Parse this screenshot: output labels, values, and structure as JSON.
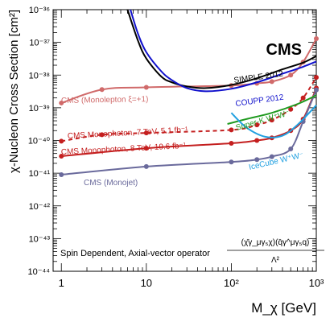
{
  "chart_data": {
    "type": "line",
    "title": "",
    "xlabel": "M_χ [GeV]",
    "ylabel": "χ-Nucleon Cross Section [cm²]",
    "xscale": "log",
    "yscale": "log",
    "xlim": [
      0.8,
      1000
    ],
    "ylim": [
      1e-44,
      1e-36
    ],
    "x_ticks": [
      "1",
      "10",
      "10²",
      "10³"
    ],
    "y_ticks": [
      "10⁻⁴⁴",
      "10⁻⁴³",
      "10⁻⁴²",
      "10⁻⁴¹",
      "10⁻⁴⁰",
      "10⁻³⁹",
      "10⁻³⁸",
      "10⁻³⁷",
      "10⁻³⁶"
    ],
    "grid": false,
    "experiment": "CMS",
    "operator_text": "Spin Dependent, Axial-vector operator",
    "operator_formula": {
      "numerator": "(χ̄γ_μγ₅χ)(q̄γ^μγ₅q)",
      "denominator": "Λ²"
    },
    "series": [
      {
        "name": "CMS (Monolepton ξ=+1)",
        "color": "#d06a6a",
        "style": "solid",
        "markers": true,
        "x": [
          1,
          3,
          10,
          100,
          200,
          300,
          500,
          700,
          1000
        ],
        "y": [
          1.4e-39,
          3.6e-39,
          4.2e-39,
          4.8e-39,
          5.6e-39,
          6.3e-39,
          1e-38,
          2.5e-38,
          1.3e-37
        ]
      },
      {
        "name": "CMS Monophoton, 7 TeV, 5.1 fb⁻¹",
        "color": "#c41f1f",
        "style": "dashed",
        "markers": true,
        "x": [
          1,
          3,
          10,
          100,
          200,
          300,
          500,
          700,
          1000
        ],
        "y": [
          9.5e-41,
          1.5e-40,
          1.7e-40,
          2.1e-40,
          3e-40,
          4.2e-40,
          9e-40,
          2e-39,
          8.5e-39
        ]
      },
      {
        "name": "CMS Monophoton, 8 TeV, 19.6 fb⁻¹",
        "color": "#c41f1f",
        "style": "solid",
        "markers": true,
        "x": [
          1,
          10,
          100,
          200,
          300,
          500,
          700,
          1000
        ],
        "y": [
          3.3e-41,
          5.8e-41,
          8.2e-41,
          1e-40,
          1.2e-40,
          2e-40,
          4.5e-40,
          4e-39
        ]
      },
      {
        "name": "CMS (Monojet)",
        "color": "#6a6a9c",
        "style": "solid",
        "markers": true,
        "x": [
          1,
          10,
          100,
          200,
          300,
          500,
          700,
          1000
        ],
        "y": [
          9e-42,
          1.6e-41,
          2.2e-41,
          2.6e-41,
          3.2e-41,
          5.5e-41,
          3.8e-40,
          3.5e-39
        ]
      },
      {
        "name": "SIMPLE 2012",
        "color": "#000000",
        "style": "solid",
        "markers": false,
        "x": [
          6,
          8,
          10,
          15,
          20,
          30,
          50,
          100,
          200,
          400,
          700,
          1000
        ],
        "y": [
          1e-36,
          1.1e-37,
          3.2e-38,
          9e-39,
          6e-39,
          4.5e-39,
          4e-39,
          5e-39,
          8e-39,
          1.5e-38,
          2.4e-38,
          3.8e-38
        ]
      },
      {
        "name": "COUPP 2012",
        "color": "#1010cc",
        "style": "solid",
        "markers": false,
        "x": [
          6.5,
          8,
          10,
          15,
          20,
          30,
          50,
          100,
          200,
          400,
          700,
          1000
        ],
        "y": [
          1e-36,
          1.8e-37,
          5e-38,
          1.3e-38,
          7e-39,
          4e-39,
          3.2e-39,
          3.8e-39,
          6e-39,
          1.1e-38,
          1.8e-38,
          2.6e-38
        ]
      },
      {
        "name": "Super-K W⁺W⁻",
        "color": "#1f9a1f",
        "style": "solid",
        "markers": false,
        "x": [
          90,
          150,
          300,
          600,
          1000
        ],
        "y": [
          3.2e-40,
          4.5e-40,
          7e-40,
          1.3e-39,
          2.4e-39
        ]
      },
      {
        "name": "IceCube W⁺W⁻",
        "color": "#22a0e0",
        "style": "solid",
        "markers": false,
        "x": [
          100,
          150,
          250,
          400,
          600,
          1000
        ],
        "y": [
          7e-40,
          2.5e-40,
          1.3e-40,
          1.4e-40,
          3e-40,
          1.2e-39
        ]
      }
    ]
  }
}
